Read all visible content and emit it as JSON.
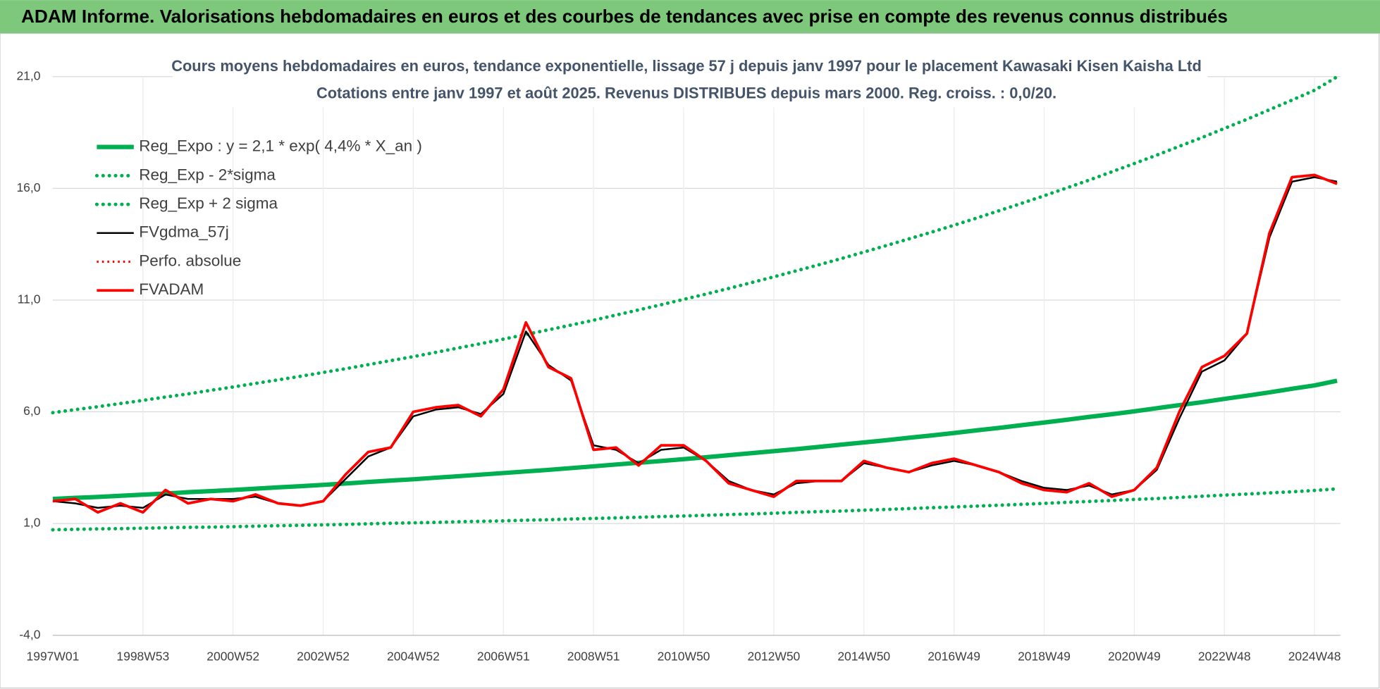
{
  "header": "ADAM Informe. Valorisations hebdomadaires en euros et des courbes de tendances avec prise en compte des revenus connus distribués",
  "chart_data": {
    "type": "line",
    "title": "Cours moyens hebdomadaires en euros, tendance exponentielle, lissage 57 j depuis janv 1997 pour le placement Kawasaki Kisen Kaisha Ltd",
    "subtitle": "Cotations entre janv 1997 et août 2025.  Revenus DISTRIBUES depuis mars 2000. Reg. croiss. : 0,0/20.",
    "categories": [
      "1997W01",
      null,
      null,
      null,
      "1998W53",
      null,
      null,
      null,
      "2000W52",
      null,
      null,
      null,
      "2002W52",
      null,
      null,
      null,
      "2004W52",
      null,
      null,
      null,
      "2006W51",
      null,
      null,
      null,
      "2008W51",
      null,
      null,
      null,
      "2010W50",
      null,
      null,
      null,
      "2012W50",
      null,
      null,
      null,
      "2014W50",
      null,
      null,
      null,
      "2016W49",
      null,
      null,
      null,
      "2018W49",
      null,
      null,
      null,
      "2020W49",
      null,
      null,
      null,
      "2022W48",
      null,
      null,
      null,
      "2024W48",
      null
    ],
    "ylim": [
      -4,
      21
    ],
    "yticks": [
      {
        "value": -4,
        "label": "-4,0"
      },
      {
        "value": 1,
        "label": "1,0"
      },
      {
        "value": 6,
        "label": "6,0"
      },
      {
        "value": 11,
        "label": "11,0"
      },
      {
        "value": 16,
        "label": "16,0"
      },
      {
        "value": 21,
        "label": "21,0"
      }
    ],
    "grid": true,
    "legend": "upper left",
    "series": [
      {
        "name": "Reg_Expo : y = 2,1 * exp( 4,4% *  X_an )",
        "color": "#00b050",
        "style": "solid",
        "values": [
          2.1,
          2.15,
          2.19,
          2.24,
          2.29,
          2.34,
          2.4,
          2.45,
          2.5,
          2.56,
          2.62,
          2.67,
          2.73,
          2.79,
          2.86,
          2.92,
          2.98,
          3.05,
          3.12,
          3.19,
          3.26,
          3.33,
          3.4,
          3.48,
          3.56,
          3.64,
          3.72,
          3.8,
          3.88,
          3.97,
          4.06,
          4.15,
          4.24,
          4.33,
          4.43,
          4.53,
          4.63,
          4.73,
          4.84,
          4.94,
          5.05,
          5.17,
          5.28,
          5.4,
          5.52,
          5.64,
          5.77,
          5.89,
          6.02,
          6.16,
          6.3,
          6.43,
          6.58,
          6.72,
          6.87,
          7.03,
          7.18,
          7.39
        ]
      },
      {
        "name": "Reg_Exp - 2*sigma",
        "color": "#00b050",
        "style": "dotted",
        "values": [
          0.72,
          0.74,
          0.76,
          0.77,
          0.79,
          0.81,
          0.83,
          0.84,
          0.86,
          0.88,
          0.9,
          0.92,
          0.94,
          0.96,
          0.99,
          1.01,
          1.03,
          1.05,
          1.08,
          1.1,
          1.12,
          1.15,
          1.17,
          1.2,
          1.23,
          1.25,
          1.28,
          1.31,
          1.34,
          1.37,
          1.4,
          1.43,
          1.46,
          1.5,
          1.53,
          1.56,
          1.6,
          1.63,
          1.67,
          1.71,
          1.74,
          1.78,
          1.82,
          1.86,
          1.9,
          1.95,
          1.99,
          2.03,
          2.08,
          2.12,
          2.17,
          2.22,
          2.27,
          2.32,
          2.37,
          2.42,
          2.48,
          2.55
        ]
      },
      {
        "name": "Reg_Exp + 2 sigma",
        "color": "#00b050",
        "style": "dotted",
        "values": [
          5.96,
          6.1,
          6.23,
          6.37,
          6.51,
          6.66,
          6.8,
          6.96,
          7.11,
          7.27,
          7.43,
          7.59,
          7.76,
          7.93,
          8.11,
          8.29,
          8.47,
          8.66,
          8.86,
          9.05,
          9.25,
          9.46,
          9.67,
          9.88,
          10.1,
          10.33,
          10.56,
          10.79,
          11.03,
          11.27,
          11.52,
          11.78,
          12.04,
          12.31,
          12.58,
          12.86,
          13.15,
          13.44,
          13.74,
          14.04,
          14.35,
          14.67,
          15.0,
          15.33,
          15.67,
          16.02,
          16.37,
          16.74,
          17.11,
          17.49,
          17.88,
          18.27,
          18.68,
          19.09,
          19.52,
          19.95,
          20.39,
          20.99
        ]
      },
      {
        "name": "FVgdma_57j",
        "color": "#000000",
        "style": "solid",
        "values": [
          2.0,
          1.9,
          1.7,
          1.8,
          1.7,
          2.3,
          2.1,
          2.1,
          2.1,
          2.2,
          1.9,
          1.8,
          2.0,
          3.0,
          4.0,
          4.4,
          5.8,
          6.1,
          6.2,
          5.9,
          6.8,
          9.6,
          8.1,
          7.4,
          4.5,
          4.3,
          3.7,
          4.3,
          4.4,
          3.8,
          2.9,
          2.5,
          2.3,
          2.8,
          2.9,
          2.9,
          3.7,
          3.5,
          3.3,
          3.6,
          3.8,
          3.6,
          3.3,
          2.9,
          2.6,
          2.5,
          2.7,
          2.3,
          2.5,
          3.4,
          5.7,
          7.8,
          8.3,
          9.5,
          13.8,
          16.3,
          16.5,
          16.3
        ]
      },
      {
        "name": "Perfo. absolue",
        "color": "#ff0000",
        "style": "dotted",
        "values": [
          2.0,
          2.1,
          1.5,
          1.9,
          1.5,
          2.5,
          1.9,
          2.1,
          2.0,
          2.3,
          1.9,
          1.8,
          2.0,
          3.2,
          4.2,
          4.4,
          6.0,
          6.2,
          6.3,
          5.8,
          7.0,
          10.0,
          8.0,
          7.5,
          4.3,
          4.4,
          3.6,
          4.5,
          4.5,
          3.8,
          2.8,
          2.5,
          2.2,
          2.9,
          2.9,
          2.9,
          3.8,
          3.5,
          3.3,
          3.7,
          3.9,
          3.6,
          3.3,
          2.8,
          2.5,
          2.4,
          2.8,
          2.2,
          2.5,
          3.5,
          6.0,
          8.0,
          8.5,
          9.5,
          14.0,
          16.5,
          16.6,
          16.2
        ]
      },
      {
        "name": "FVADAM",
        "color": "#ff0000",
        "style": "solid",
        "values": [
          2.0,
          2.1,
          1.5,
          1.9,
          1.5,
          2.5,
          1.9,
          2.1,
          2.0,
          2.3,
          1.9,
          1.8,
          2.0,
          3.2,
          4.2,
          4.4,
          6.0,
          6.2,
          6.3,
          5.8,
          7.0,
          10.0,
          8.0,
          7.5,
          4.3,
          4.4,
          3.6,
          4.5,
          4.5,
          3.8,
          2.8,
          2.5,
          2.2,
          2.9,
          2.9,
          2.9,
          3.8,
          3.5,
          3.3,
          3.7,
          3.9,
          3.6,
          3.3,
          2.8,
          2.5,
          2.4,
          2.8,
          2.2,
          2.5,
          3.5,
          6.0,
          8.0,
          8.5,
          9.5,
          14.0,
          16.5,
          16.6,
          16.2
        ]
      }
    ]
  }
}
